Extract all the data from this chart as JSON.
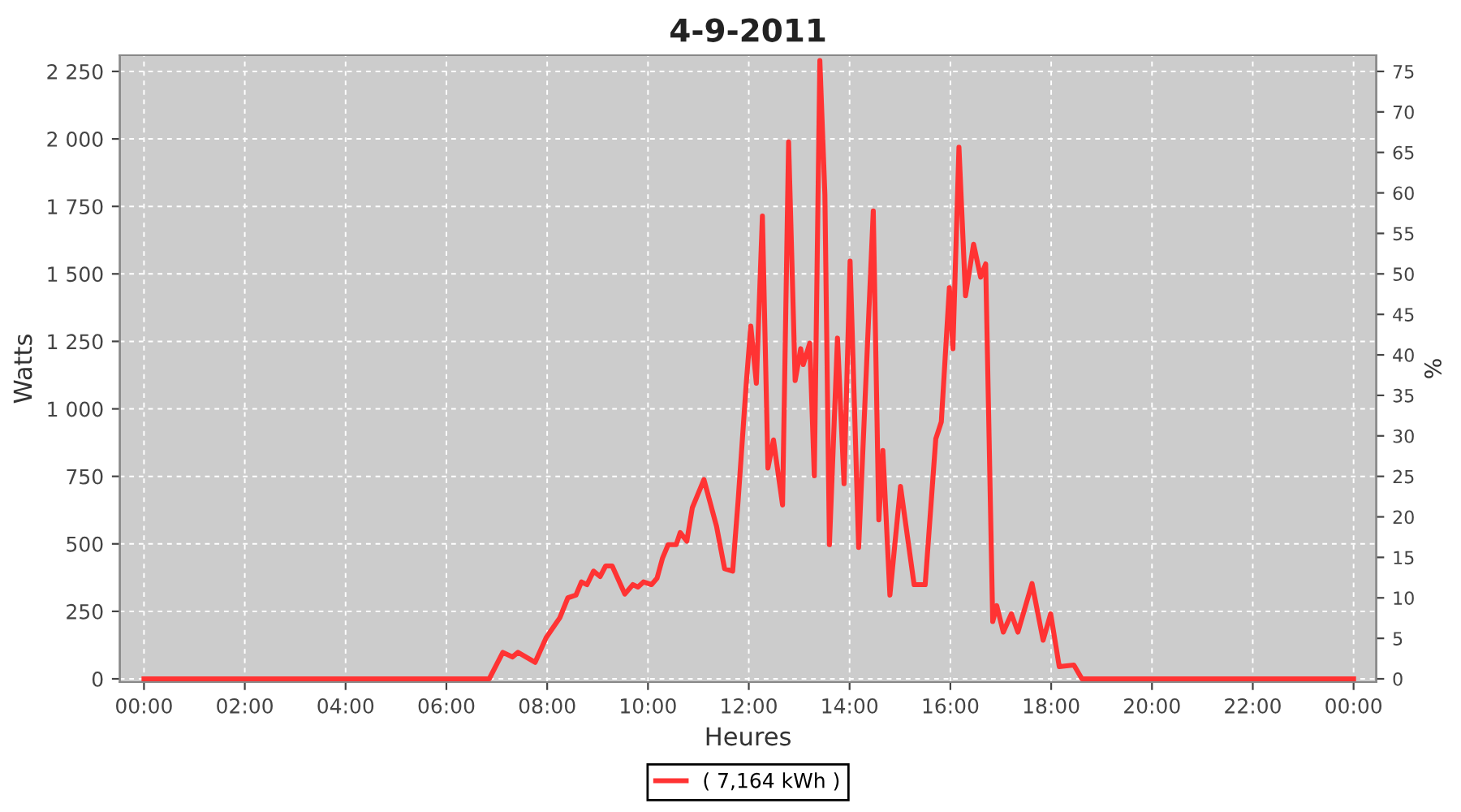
{
  "chart_data": {
    "type": "line",
    "title": "4-9-2011",
    "xlabel": "Heures",
    "ylabel": "Watts",
    "y2label": "%",
    "series": [
      {
        "name": "( 7,164 kWh )",
        "color": "#ff3333",
        "x": [
          0,
          6.85,
          7.12,
          7.31,
          7.42,
          7.76,
          7.98,
          8.25,
          8.41,
          8.57,
          8.68,
          8.79,
          8.92,
          9.05,
          9.16,
          9.29,
          9.54,
          9.7,
          9.8,
          9.91,
          10.07,
          10.18,
          10.29,
          10.4,
          10.56,
          10.64,
          10.77,
          10.88,
          11.11,
          11.36,
          11.52,
          11.68,
          11.79,
          11.95,
          12.04,
          12.15,
          12.27,
          12.38,
          12.49,
          12.67,
          12.79,
          12.92,
          13.03,
          13.08,
          13.21,
          13.3,
          13.41,
          13.51,
          13.6,
          13.76,
          13.89,
          14.01,
          14.18,
          14.47,
          14.58,
          14.66,
          14.8,
          15.01,
          15.28,
          15.5,
          15.71,
          15.82,
          15.98,
          16.05,
          16.17,
          16.3,
          16.46,
          16.6,
          16.7,
          16.84,
          16.92,
          17.05,
          17.21,
          17.34,
          17.62,
          17.84,
          17.99,
          18.16,
          18.45,
          18.61,
          24
        ],
        "values": [
          0,
          0,
          98,
          81,
          98,
          61,
          153,
          226,
          300,
          310,
          359,
          349,
          399,
          379,
          418,
          418,
          314,
          349,
          340,
          359,
          349,
          373,
          448,
          497,
          497,
          542,
          510,
          634,
          738,
          565,
          408,
          399,
          664,
          1095,
          1307,
          1095,
          1714,
          781,
          885,
          644,
          1989,
          1105,
          1223,
          1164,
          1243,
          752,
          2290,
          1792,
          497,
          1262,
          723,
          1547,
          487,
          1733,
          589,
          846,
          310,
          713,
          349,
          349,
          889,
          952,
          1449,
          1223,
          1969,
          1419,
          1610,
          1488,
          1537,
          212,
          271,
          173,
          241,
          173,
          353,
          143,
          241,
          45,
          51,
          0,
          0
        ]
      }
    ],
    "xlim": [
      -0.48,
      24.45
    ],
    "xticks": [
      {
        "value": 0,
        "label": "00:00"
      },
      {
        "value": 2,
        "label": "02:00"
      },
      {
        "value": 4,
        "label": "04:00"
      },
      {
        "value": 6,
        "label": "06:00"
      },
      {
        "value": 8,
        "label": "08:00"
      },
      {
        "value": 10,
        "label": "10:00"
      },
      {
        "value": 12,
        "label": "12:00"
      },
      {
        "value": 14,
        "label": "14:00"
      },
      {
        "value": 16,
        "label": "16:00"
      },
      {
        "value": 18,
        "label": "18:00"
      },
      {
        "value": 20,
        "label": "20:00"
      },
      {
        "value": 22,
        "label": "22:00"
      },
      {
        "value": 24,
        "label": "00:00"
      }
    ],
    "ylim": [
      -12,
      2310
    ],
    "yticks": [
      0,
      250,
      500,
      750,
      {
        "value": 1000,
        "label": "1 000"
      },
      {
        "value": 1250,
        "label": "1 250"
      },
      {
        "value": 1500,
        "label": "1 500"
      },
      {
        "value": 1750,
        "label": "1 750"
      },
      {
        "value": 2000,
        "label": "2 000"
      },
      {
        "value": 2250,
        "label": "2 250"
      }
    ],
    "y2lim": [
      -0.4,
      77
    ],
    "y2ticks": [
      0,
      5,
      10,
      15,
      20,
      25,
      30,
      35,
      40,
      45,
      50,
      55,
      60,
      65,
      70,
      75
    ],
    "grid": true,
    "legend": "bottom",
    "marker": "none",
    "line_style": "solid"
  }
}
